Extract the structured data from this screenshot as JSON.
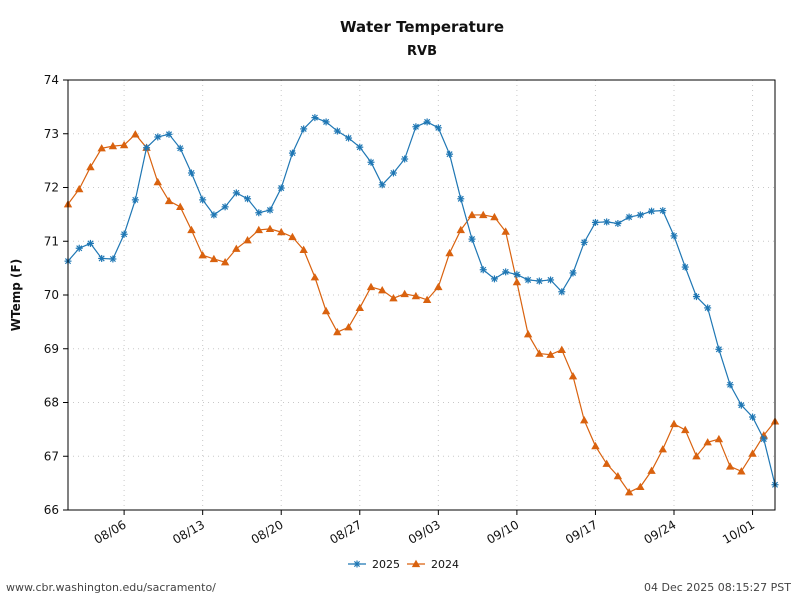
{
  "chart_data": {
    "type": "line",
    "title": "Water Temperature",
    "subtitle": "RVB",
    "xlabel": "",
    "ylabel": "WTemp (F)",
    "ylim": [
      66,
      74
    ],
    "yticks": [
      "66",
      "67",
      "68",
      "69",
      "70",
      "71",
      "72",
      "73",
      "74"
    ],
    "x_start_date": "08/01",
    "x_range_days": [
      0,
      63
    ],
    "xticks": [
      {
        "day": 5,
        "label": "08/06"
      },
      {
        "day": 12,
        "label": "08/13"
      },
      {
        "day": 19,
        "label": "08/20"
      },
      {
        "day": 26,
        "label": "08/27"
      },
      {
        "day": 33,
        "label": "09/03"
      },
      {
        "day": 40,
        "label": "09/10"
      },
      {
        "day": 47,
        "label": "09/17"
      },
      {
        "day": 54,
        "label": "09/24"
      },
      {
        "day": 61,
        "label": "10/01"
      }
    ],
    "grid": true,
    "legend_position": "bottom-center",
    "series": [
      {
        "name": "2025",
        "color": "#1f77b4",
        "marker": "asterisk",
        "values": [
          70.63,
          70.87,
          70.96,
          70.68,
          70.67,
          71.13,
          71.77,
          72.74,
          72.94,
          72.99,
          72.73,
          72.27,
          71.77,
          71.49,
          71.64,
          71.9,
          71.79,
          71.53,
          71.58,
          71.99,
          72.64,
          73.09,
          73.3,
          73.22,
          73.05,
          72.92,
          72.75,
          72.47,
          72.05,
          72.27,
          72.53,
          73.13,
          73.22,
          73.11,
          72.62,
          71.79,
          71.04,
          70.47,
          70.3,
          70.43,
          70.38,
          70.28,
          70.26,
          70.28,
          70.06,
          70.41,
          70.98,
          71.35,
          71.36,
          71.33,
          71.45,
          71.49,
          71.56,
          71.57,
          71.1,
          70.52,
          69.97,
          69.76,
          68.99,
          68.33,
          67.95,
          67.73,
          67.32,
          66.47
        ]
      },
      {
        "name": "2024",
        "color": "#d9620f",
        "marker": "triangle",
        "values": [
          71.69,
          71.97,
          72.38,
          72.73,
          72.77,
          72.79,
          72.99,
          72.74,
          72.1,
          71.75,
          71.64,
          71.21,
          70.74,
          70.67,
          70.61,
          70.86,
          71.02,
          71.21,
          71.23,
          71.17,
          71.08,
          70.84,
          70.33,
          69.7,
          69.31,
          69.4,
          69.76,
          70.15,
          70.09,
          69.94,
          70.02,
          69.98,
          69.91,
          70.15,
          70.78,
          71.21,
          71.49,
          71.49,
          71.45,
          71.18,
          70.24,
          69.27,
          68.91,
          68.89,
          68.98,
          68.49,
          67.67,
          67.19,
          66.86,
          66.63,
          66.33,
          66.43,
          66.73,
          67.13,
          67.6,
          67.49,
          67.0,
          67.26,
          67.32,
          66.81,
          66.72,
          67.05,
          67.39,
          67.65
        ]
      }
    ]
  },
  "footer": {
    "source_url": "www.cbr.washington.edu/sacramento/",
    "timestamp": "04 Dec 2025 08:15:27 PST"
  }
}
